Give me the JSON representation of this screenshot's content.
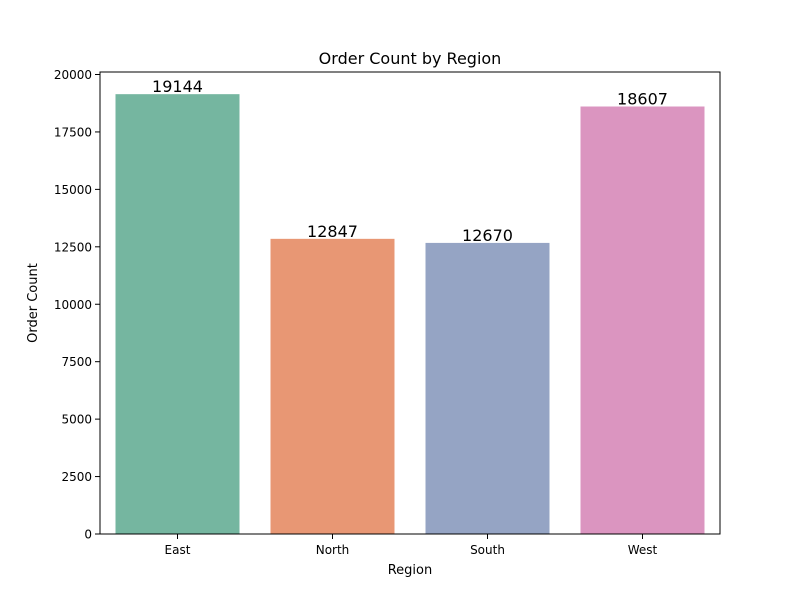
{
  "chart_data": {
    "type": "bar",
    "title": "Order Count by Region",
    "xlabel": "Region",
    "ylabel": "Order Count",
    "categories": [
      "East",
      "North",
      "South",
      "West"
    ],
    "values": [
      19144,
      12847,
      12670,
      18607
    ],
    "data_labels": [
      "19144",
      "12847",
      "12670",
      "18607"
    ],
    "colors": [
      "#75B6A0",
      "#E89774",
      "#95A4C4",
      "#DB95C0"
    ],
    "ylim": [
      0,
      20000
    ],
    "yticks": [
      0,
      2500,
      5000,
      7500,
      10000,
      12500,
      15000,
      17500,
      20000
    ],
    "ytick_labels": [
      "0",
      "2500",
      "5000",
      "7500",
      "10000",
      "12500",
      "15000",
      "17500",
      "20000"
    ],
    "grid": false,
    "legend": "none"
  }
}
